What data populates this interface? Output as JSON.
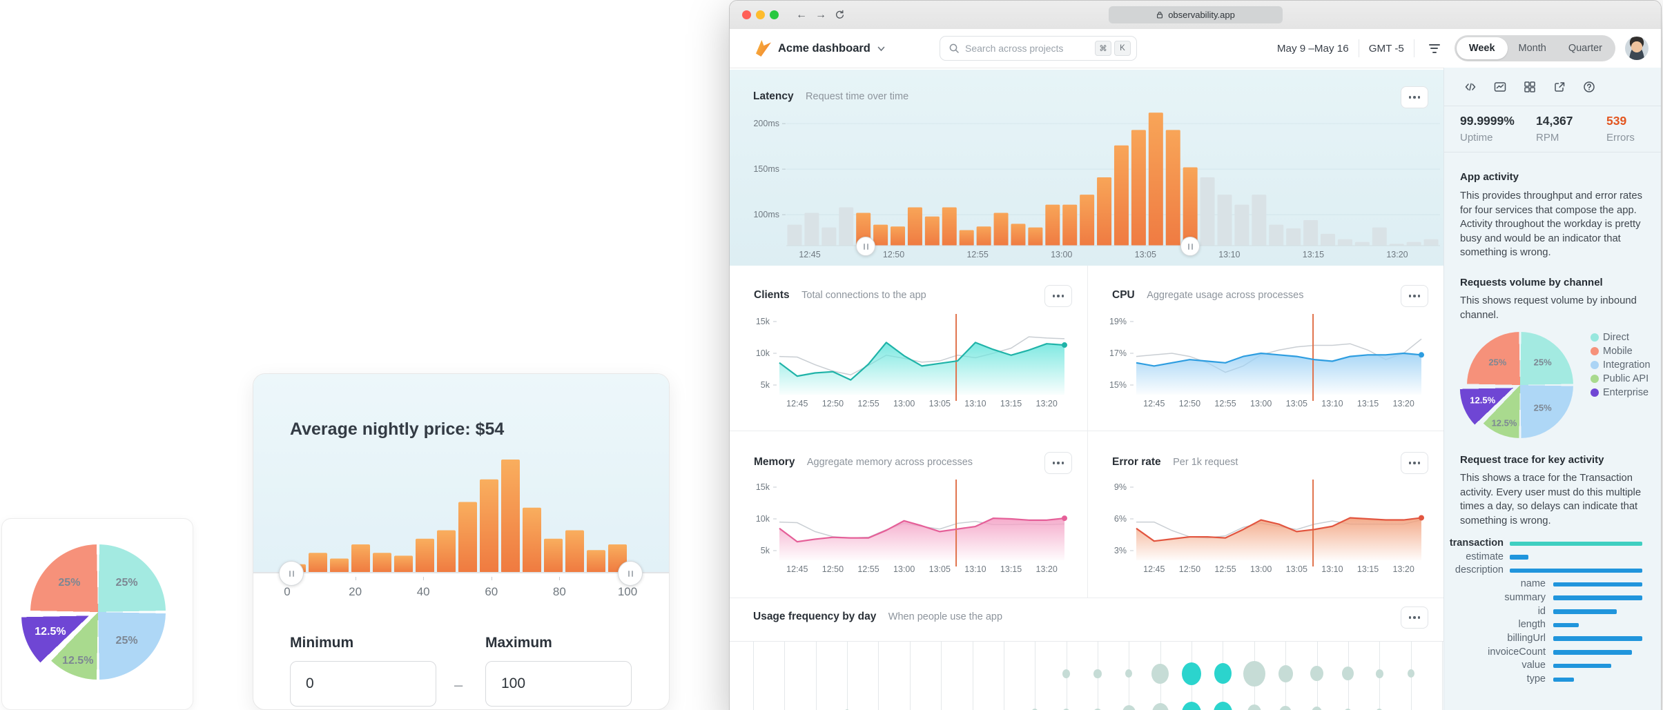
{
  "time_labels": [
    "12:45",
    "12:50",
    "12:55",
    "13:00",
    "13:05",
    "13:10",
    "13:15",
    "13:20"
  ],
  "pie_card": {
    "slices": [
      {
        "name": "Direct",
        "pct": "25%",
        "value": 25,
        "color": "#a3eae1",
        "from": 0,
        "to": 90
      },
      {
        "name": "Integration",
        "pct": "25%",
        "value": 25,
        "color": "#aed7f6",
        "from": 90,
        "to": 180
      },
      {
        "name": "Public API",
        "pct": "12.5%",
        "value": 12.5,
        "color": "#a9da8e",
        "from": 180,
        "to": 225
      },
      {
        "name": "Enterprise",
        "pct": "12.5%",
        "value": 12.5,
        "color": "#6f46d4",
        "from": 225,
        "to": 270,
        "exploded": true,
        "label_color": "#ffffff"
      },
      {
        "name": "Mobile",
        "pct": "25%",
        "value": 25,
        "color": "#f6917a",
        "from": 270,
        "to": 360
      }
    ]
  },
  "price_card": {
    "title": "Average nightly price: $54",
    "histogram": [
      3,
      7,
      5,
      10,
      7,
      6,
      12,
      15,
      25,
      33,
      40,
      23,
      12,
      15,
      8,
      10
    ],
    "hist_max": 40,
    "axis": [
      "0",
      "20",
      "40",
      "60",
      "80",
      "100"
    ],
    "minimum": {
      "label": "Minimum",
      "value": "0"
    },
    "maximum": {
      "label": "Maximum",
      "value": "100"
    },
    "dash": "–"
  },
  "browser": {
    "chrome": {
      "url": "observability.app",
      "traffic": [
        "#ff5f57",
        "#febc2e",
        "#28c840"
      ],
      "back": "←",
      "forward": "→"
    },
    "header": {
      "app_name": "Acme dashboard",
      "search_placeholder": "Search across projects",
      "kbd": [
        "⌘",
        "K"
      ],
      "date_range": "May 9 –May 16",
      "timezone": "GMT -5",
      "tabs": [
        "Week",
        "Month",
        "Quarter"
      ],
      "active_tab": "Week"
    }
  },
  "latency": {
    "title": "Latency",
    "subtitle": "Request time over time",
    "y_ticks": [
      {
        "v": 100,
        "label": "100ms"
      },
      {
        "v": 150,
        "label": "150ms"
      },
      {
        "v": 200,
        "label": "200ms"
      }
    ],
    "values": [
      89,
      102,
      86,
      108,
      102,
      89,
      87,
      108,
      98,
      108,
      83,
      87,
      102,
      90,
      86,
      111,
      111,
      122,
      141,
      176,
      193,
      212,
      193,
      152,
      141,
      122,
      111,
      122,
      89,
      85,
      94,
      79,
      73,
      70,
      86,
      68,
      70,
      73
    ],
    "selection": {
      "start_index": 4,
      "end_index": 23
    },
    "bar_selected": "#f59051",
    "bar_unselected": "#d9e2e6"
  },
  "clients": {
    "title": "Clients",
    "subtitle": "Total connections to the app",
    "y_ticks": [
      {
        "v": 5,
        "label": "5k"
      },
      {
        "v": 10,
        "label": "10k"
      },
      {
        "v": 15,
        "label": "15k"
      }
    ],
    "main": [
      8.5,
      6.4,
      6.9,
      7.1,
      5.8,
      8.3,
      11.7,
      9.6,
      8.0,
      8.4,
      8.8,
      11.7,
      10.6,
      9.7,
      10.5,
      11.5,
      11.3
    ],
    "compare": [
      9.5,
      9.4,
      8.2,
      7.2,
      6.6,
      8.1,
      9.7,
      9.2,
      8.6,
      8.8,
      9.7,
      9.3,
      10.0,
      10.8,
      12.6,
      12.4,
      12.3
    ],
    "color": "#1fb3a8",
    "fill": "#6fe6de"
  },
  "cpu": {
    "title": "CPU",
    "subtitle": "Aggregate usage across processes",
    "y_ticks": [
      {
        "v": 15,
        "label": "15%"
      },
      {
        "v": 17,
        "label": "17%"
      },
      {
        "v": 19,
        "label": "19%"
      }
    ],
    "main": [
      16.4,
      16.2,
      16.4,
      16.6,
      16.5,
      16.4,
      16.8,
      17.0,
      16.9,
      16.8,
      16.6,
      16.5,
      16.8,
      16.9,
      16.9,
      17.0,
      16.9
    ],
    "compare": [
      16.8,
      16.9,
      17.0,
      16.8,
      16.4,
      15.8,
      16.2,
      16.9,
      17.2,
      17.4,
      17.5,
      17.5,
      17.6,
      17.2,
      16.6,
      17.0,
      17.9
    ],
    "color": "#2d9de0",
    "fill": "#9fd2f5"
  },
  "memory": {
    "title": "Memory",
    "subtitle": "Aggregate memory across processes",
    "y_ticks": [
      {
        "v": 5,
        "label": "5k"
      },
      {
        "v": 10,
        "label": "10k"
      },
      {
        "v": 15,
        "label": "15k"
      }
    ],
    "main": [
      8.5,
      6.4,
      6.8,
      7.1,
      7.0,
      7.0,
      8.2,
      9.7,
      8.9,
      8.0,
      8.4,
      8.8,
      10.1,
      10.0,
      9.8,
      9.8,
      10.1
    ],
    "compare": [
      9.5,
      9.4,
      8.0,
      7.2,
      7.0,
      7.1,
      8.3,
      9.3,
      8.8,
      8.4,
      9.3,
      9.6,
      9.1,
      9.1,
      9.2,
      9.1,
      9.2
    ],
    "color": "#e55f98",
    "fill": "#f4a3c6"
  },
  "error_rate": {
    "title": "Error rate",
    "subtitle": "Per 1k request",
    "y_ticks": [
      {
        "v": 3,
        "label": "3%"
      },
      {
        "v": 6,
        "label": "6%"
      },
      {
        "v": 9,
        "label": "9%"
      }
    ],
    "main": [
      5.1,
      3.9,
      4.1,
      4.3,
      4.3,
      4.2,
      5.0,
      5.9,
      5.5,
      4.8,
      5.0,
      5.3,
      6.1,
      6.0,
      5.9,
      5.9,
      6.1
    ],
    "compare": [
      5.7,
      5.7,
      4.9,
      4.3,
      4.2,
      4.4,
      5.2,
      5.6,
      5.3,
      5.0,
      5.5,
      5.8,
      5.5,
      5.5,
      5.5,
      5.5,
      5.9
    ],
    "color": "#e2553f",
    "fill": "#f2a27e"
  },
  "usage": {
    "title": "Usage frequency by day",
    "subtitle": "When people use the app",
    "columns": 23,
    "bubble_color": "#c6dcd6",
    "highlight_color": "#2bd4cd",
    "rows": [
      [
        {
          "c": 10,
          "s": 13
        },
        {
          "c": 11,
          "s": 13
        },
        {
          "c": 12,
          "s": 12
        },
        {
          "c": 13,
          "s": 29
        },
        {
          "c": 14,
          "s": 33,
          "h": 1
        },
        {
          "c": 15,
          "s": 30,
          "h": 1
        },
        {
          "c": 16,
          "s": 37
        },
        {
          "c": 17,
          "s": 25
        },
        {
          "c": 18,
          "s": 22
        },
        {
          "c": 19,
          "s": 20
        },
        {
          "c": 20,
          "s": 13
        },
        {
          "c": 21,
          "s": 12
        }
      ],
      [
        {
          "c": 3,
          "s": 10
        },
        {
          "c": 9,
          "s": 12
        },
        {
          "c": 10,
          "s": 13
        },
        {
          "c": 11,
          "s": 13
        },
        {
          "c": 12,
          "s": 22
        },
        {
          "c": 13,
          "s": 28
        },
        {
          "c": 14,
          "s": 33,
          "h": 1
        },
        {
          "c": 15,
          "s": 32,
          "h": 1
        },
        {
          "c": 16,
          "s": 24
        },
        {
          "c": 17,
          "s": 21
        },
        {
          "c": 18,
          "s": 18
        },
        {
          "c": 19,
          "s": 13
        },
        {
          "c": 20,
          "s": 12
        }
      ]
    ]
  },
  "sidebar": {
    "tools": [
      "code",
      "chart",
      "grid",
      "share",
      "help"
    ],
    "stats": [
      {
        "value": "99.9999%",
        "label": "Uptime",
        "color": "#2b3238"
      },
      {
        "value": "14,367",
        "label": "RPM",
        "color": "#2b3238"
      },
      {
        "value": "539",
        "label": "Errors",
        "color": "#e2551f"
      }
    ],
    "app_activity": {
      "title": "App activity",
      "body": "This provides throughput and error rates for four services that compose the app. Activity throughout the workday is pretty busy and would be an indicator that something is wrong."
    },
    "requests": {
      "title": "Requests volume by channel",
      "body": "This shows request volume by inbound channel.",
      "legend": [
        {
          "label": "Direct",
          "color": "#97e7de"
        },
        {
          "label": "Mobile",
          "color": "#f6917a"
        },
        {
          "label": "Integration",
          "color": "#abd4f5"
        },
        {
          "label": "Public API",
          "color": "#a9da8e"
        },
        {
          "label": "Enterprise",
          "color": "#6f46d4"
        }
      ]
    },
    "trace": {
      "title": "Request trace for key activity",
      "body": "This shows a trace for the Transaction activity. Every user must do this multiple times a day, so delays can indicate that something is wrong.",
      "rows": [
        {
          "label": "transaction",
          "group": 0,
          "len": 1.0,
          "color": "#3fcfc1",
          "bold": true
        },
        {
          "label": "estimate",
          "group": 0,
          "len": 0.14,
          "color": "#2095dc"
        },
        {
          "label": "description",
          "group": 0,
          "len": 1.0,
          "color": "#2095dc"
        },
        {
          "label": "name",
          "group": 1,
          "len": 1.0,
          "color": "#2095dc"
        },
        {
          "label": "summary",
          "group": 1,
          "len": 1.0,
          "color": "#2095dc"
        },
        {
          "label": "id",
          "group": 1,
          "len": 0.713,
          "color": "#2095dc"
        },
        {
          "label": "length",
          "group": 1,
          "len": 0.287,
          "color": "#2095dc"
        },
        {
          "label": "billingUrl",
          "group": 1,
          "len": 1.0,
          "color": "#2095dc"
        },
        {
          "label": "invoiceCount",
          "group": 1,
          "len": 0.884,
          "color": "#2095dc"
        },
        {
          "label": "value",
          "group": 1,
          "len": 0.651,
          "color": "#2095dc"
        },
        {
          "label": "type",
          "group": 1,
          "len": 0.233,
          "color": "#2095dc"
        }
      ]
    }
  }
}
